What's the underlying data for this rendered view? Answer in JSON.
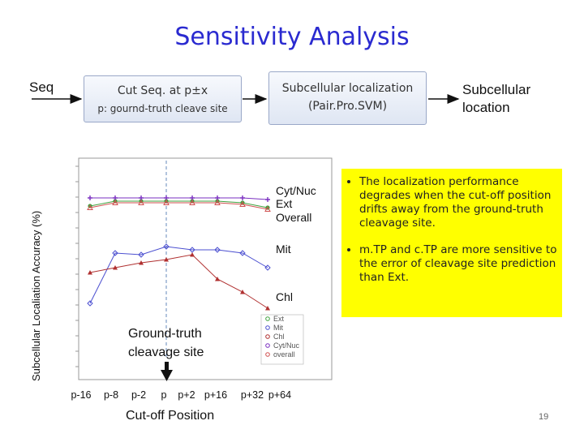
{
  "slide": {
    "title": "Sensitivity Analysis",
    "seq_label": "Seq",
    "box1_line1": "Cut Seq. at p±x",
    "box1_line2": "p: gournd-truth cleave site",
    "box2_line1": "Subcellular localization",
    "box2_line2": "(Pair.Pro.SVM)",
    "output_line1": "Subcellular",
    "output_line2": "location",
    "y_axis_label": "Subcellular Localiation Accuracy (%)",
    "x_axis_label": "Cut-off Position",
    "page_number": "19",
    "notes": [
      "The localization performance degrades when the cut-off position drifts away from the ground-truth cleavage site.",
      "m.TP and c.TP are more sensitive to the error of cleavage site prediction than Ext."
    ],
    "annotation": "Ground-truth cleavage site"
  },
  "chart_data": {
    "type": "line",
    "x": [
      "p-16",
      "p-8",
      "p-2",
      "p",
      "p+2",
      "p+16",
      "p+32",
      "p+64"
    ],
    "series": [
      {
        "name": "Ext",
        "values": [
          93,
          96,
          96,
          96,
          96,
          96,
          95,
          92
        ],
        "color": "#3fa33f",
        "marker": "circle"
      },
      {
        "name": "Mit",
        "values": [
          33,
          64,
          63,
          68,
          66,
          66,
          64,
          55
        ],
        "color": "#4b4fd0",
        "marker": "diamond"
      },
      {
        "name": "Chl",
        "values": [
          52,
          55,
          58,
          60,
          63,
          48,
          40,
          30
        ],
        "color": "#b03030",
        "marker": "triangle"
      },
      {
        "name": "Cyt/Nuc",
        "values": [
          98,
          98,
          98,
          98,
          98,
          98,
          98,
          97
        ],
        "color": "#7a2fc0",
        "marker": "plus"
      },
      {
        "name": "Overall",
        "values": [
          92,
          95,
          95,
          95,
          95,
          95,
          94,
          91
        ],
        "color": "#d05050",
        "marker": "triangle-open"
      }
    ],
    "right_labels": [
      "Cyt/Nuc",
      "Ext",
      "Overall",
      "Mit",
      "Chl"
    ],
    "legend": [
      "Ext",
      "Mit",
      "Chl",
      "Cyt/Nuc",
      "overall"
    ],
    "legend_position": "bottom-right",
    "ground_truth_position": "p"
  }
}
